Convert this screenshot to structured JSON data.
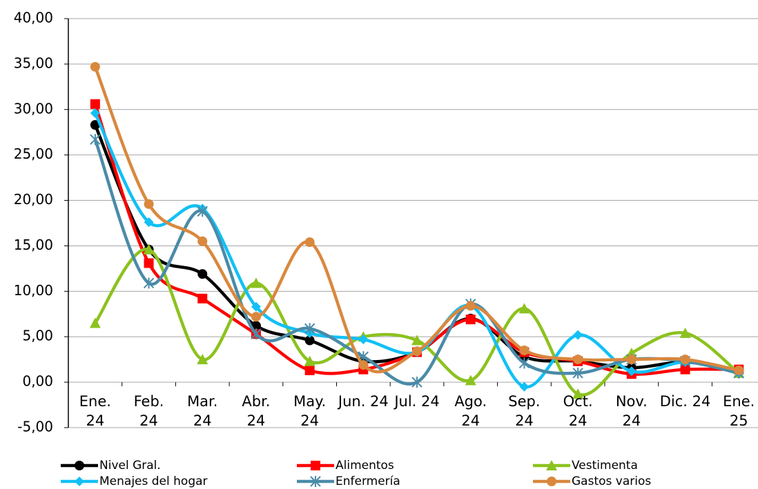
{
  "chart_data": {
    "type": "line",
    "categories": [
      "Ene. 24",
      "Feb. 24",
      "Mar. 24",
      "Abr. 24",
      "May. 24",
      "Jun. 24",
      "Jul. 24",
      "Ago. 24",
      "Sep. 24",
      "Oct. 24",
      "Nov. 24",
      "Dic. 24",
      "Ene. 25"
    ],
    "series": [
      {
        "name": "Nivel Gral.",
        "color": "#000000",
        "marker": "circle",
        "values": [
          28.3,
          14.6,
          11.9,
          6.2,
          4.6,
          2.3,
          3.3,
          7.0,
          2.8,
          2.3,
          1.6,
          2.2,
          1.3
        ]
      },
      {
        "name": "Alimentos",
        "color": "#ff0000",
        "marker": "square",
        "values": [
          30.6,
          13.1,
          9.2,
          5.3,
          1.3,
          1.4,
          3.3,
          6.9,
          3.3,
          2.3,
          0.9,
          1.4,
          1.4
        ]
      },
      {
        "name": "Vestimenta",
        "color": "#8cc21e",
        "marker": "triangle",
        "values": [
          6.5,
          14.6,
          2.5,
          10.9,
          2.3,
          5.0,
          4.6,
          0.2,
          8.1,
          -1.3,
          3.2,
          5.4,
          1.0
        ]
      },
      {
        "name": "Menajes del hogar",
        "color": "#12c0f5",
        "marker": "diamond",
        "values": [
          29.6,
          17.6,
          19.1,
          8.3,
          5.4,
          4.7,
          3.3,
          8.4,
          -0.5,
          5.2,
          1.2,
          2.2,
          1.0
        ]
      },
      {
        "name": "Enfermería",
        "color": "#4a8ba8",
        "marker": "star",
        "values": [
          26.7,
          10.9,
          18.8,
          5.3,
          5.9,
          2.8,
          0.0,
          8.6,
          2.1,
          1.0,
          2.5,
          2.3,
          1.0
        ]
      },
      {
        "name": "Gastos varios",
        "color": "#d9883e",
        "marker": "circle",
        "values": [
          34.7,
          19.6,
          15.5,
          7.2,
          15.4,
          1.9,
          3.4,
          8.4,
          3.5,
          2.5,
          2.5,
          2.5,
          1.3
        ]
      }
    ],
    "ylim": [
      -5,
      40
    ],
    "yticks": [
      {
        "value": -5,
        "label": "-5,00"
      },
      {
        "value": 0,
        "label": "0,00"
      },
      {
        "value": 5,
        "label": "5,00"
      },
      {
        "value": 10,
        "label": "10,00"
      },
      {
        "value": 15,
        "label": "15,00"
      },
      {
        "value": 20,
        "label": "20,00"
      },
      {
        "value": 25,
        "label": "25,00"
      },
      {
        "value": 30,
        "label": "30,00"
      },
      {
        "value": 35,
        "label": "35,00"
      },
      {
        "value": 40,
        "label": "40,00"
      }
    ],
    "grid": true,
    "smooth": true,
    "legend": "bottom"
  }
}
